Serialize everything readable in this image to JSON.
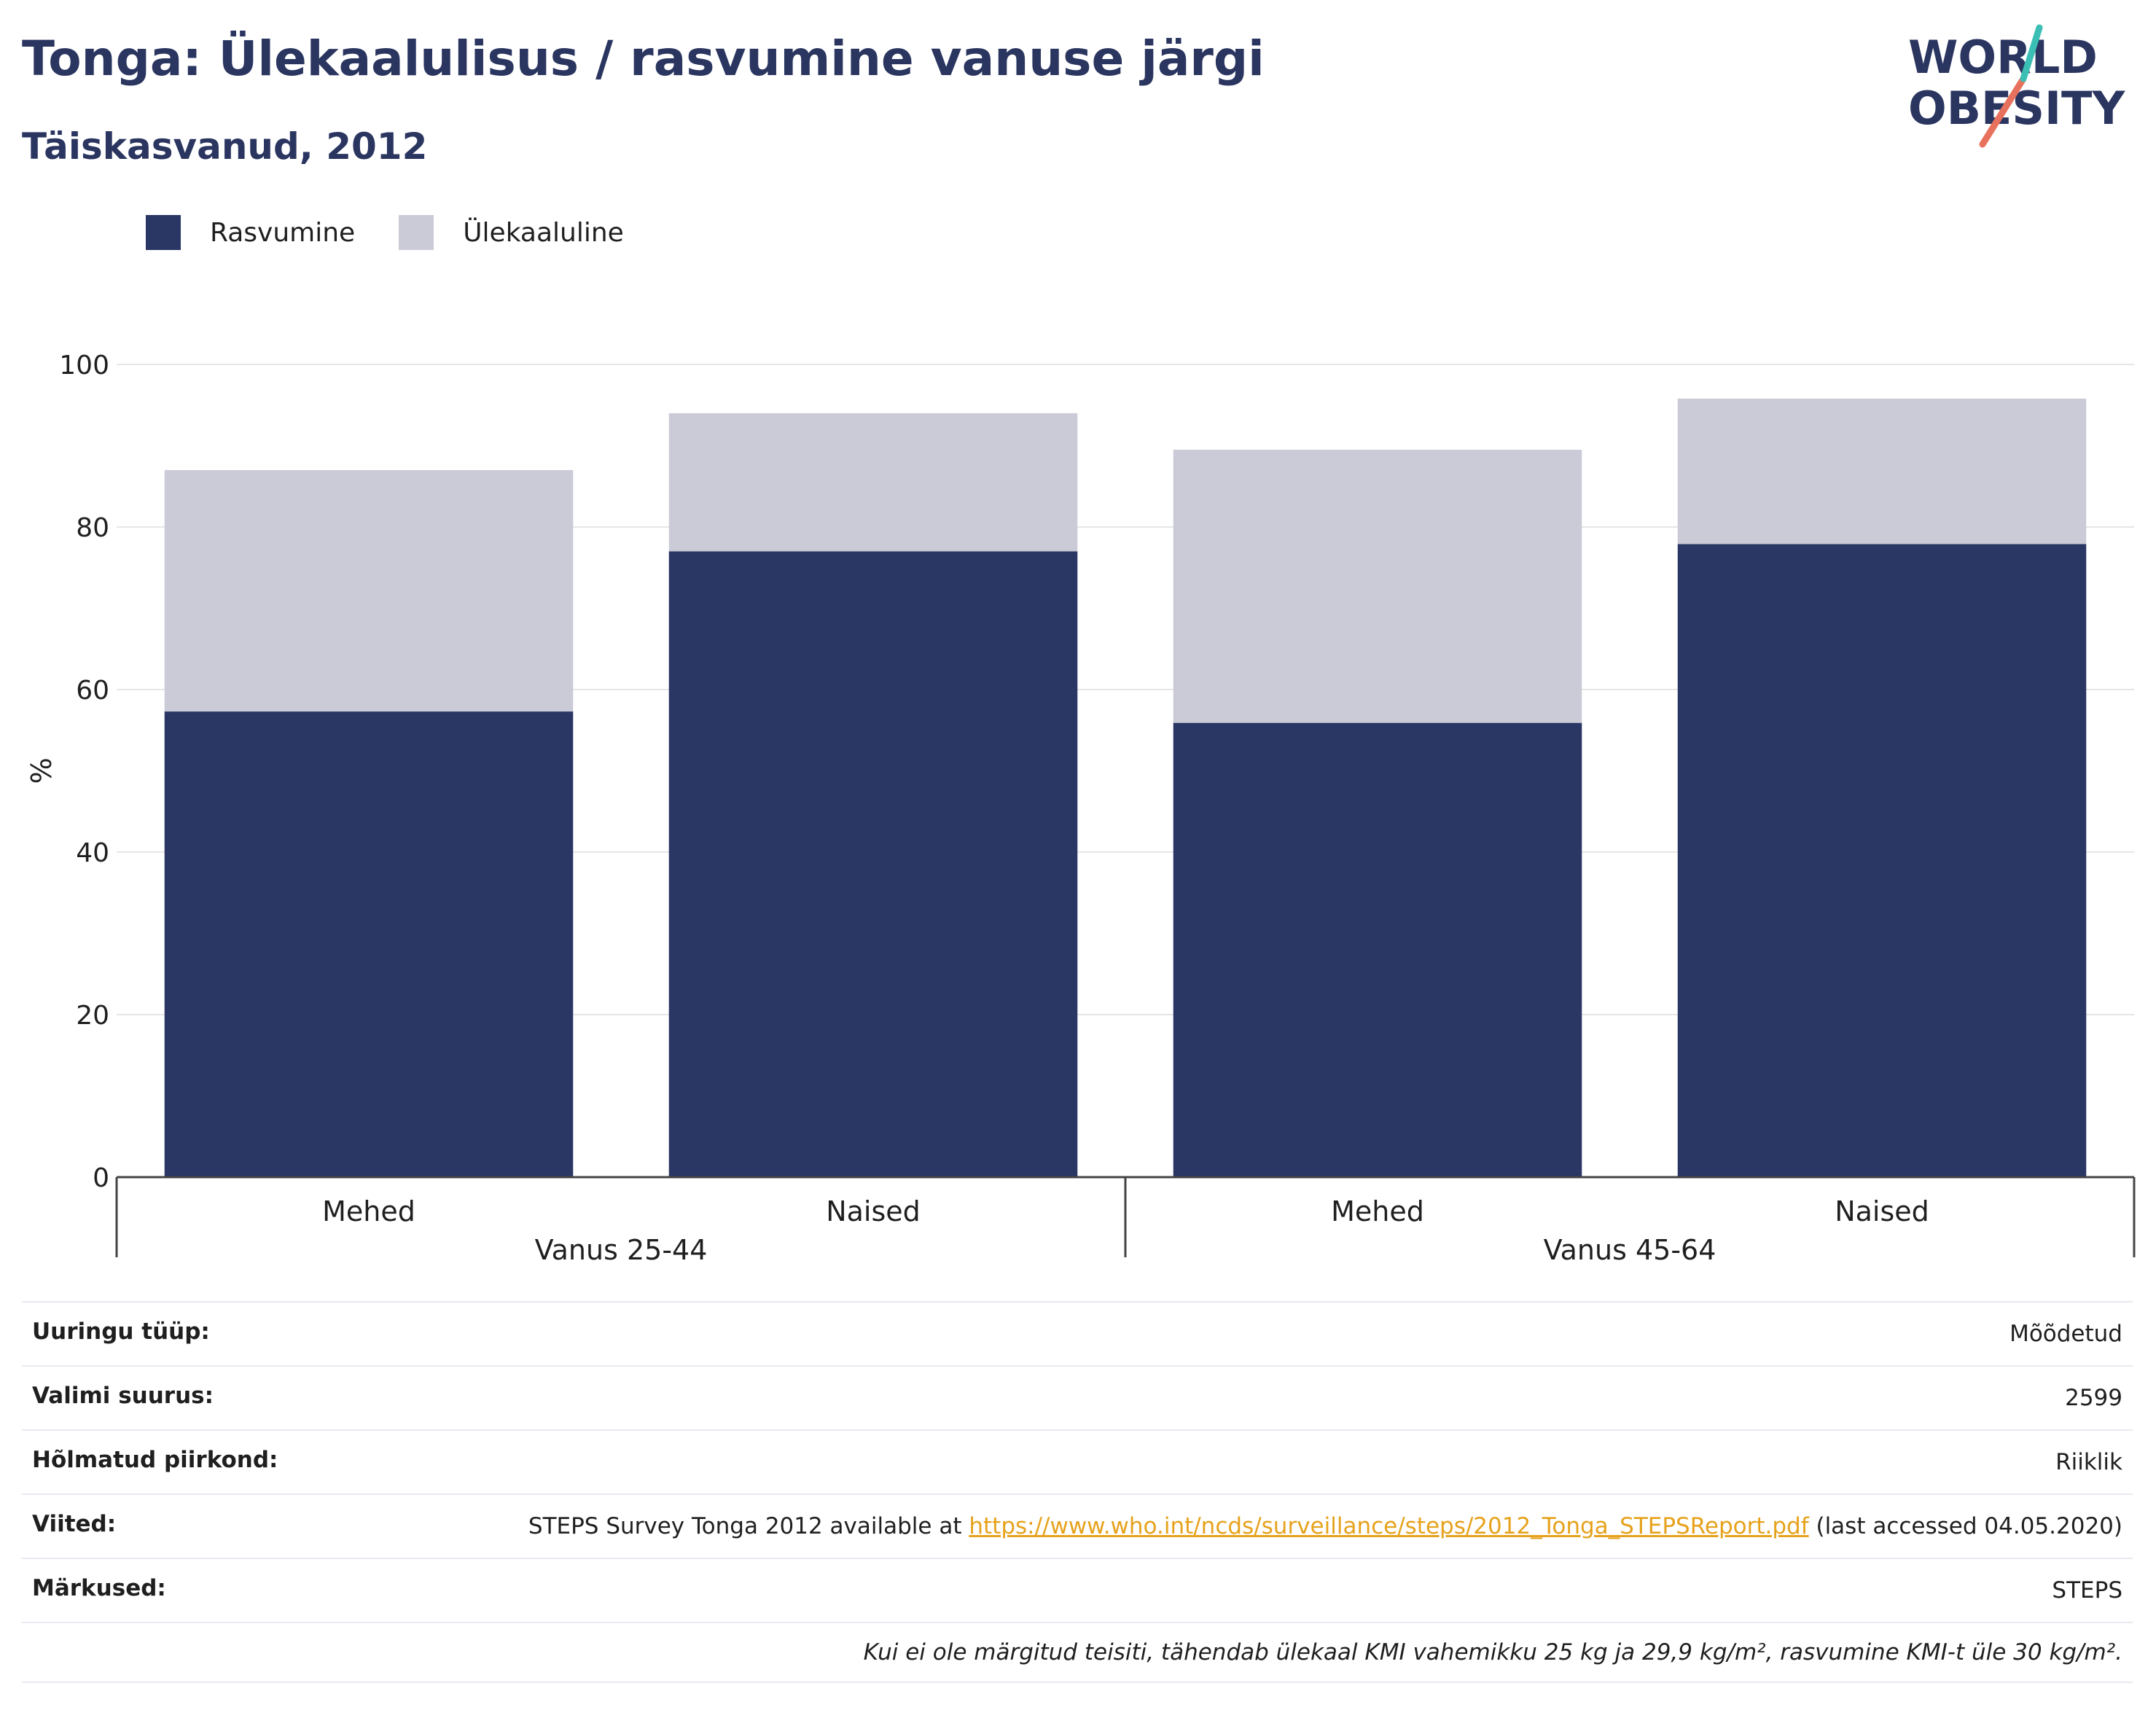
{
  "header": {
    "title": "Tonga: Ülekaalulisus / rasvumine vanuse järgi",
    "subtitle": "Täiskasvanud, 2012"
  },
  "logo": {
    "line1": "WORLD",
    "line2": "OBESITY"
  },
  "colors": {
    "obesity": "#2a3663",
    "overweight": "#cacbd7",
    "title": "#2a3560",
    "link": "#e6a21c"
  },
  "chart_data": {
    "type": "bar",
    "stacked": true,
    "ylabel": "%",
    "ylim": [
      0,
      100
    ],
    "yticks": [
      0,
      20,
      40,
      60,
      80,
      100
    ],
    "grid": true,
    "legend_position": "top-left",
    "categories": [
      "Mehed",
      "Naised",
      "Mehed",
      "Naised"
    ],
    "groups": [
      {
        "label": "Vanus 25-44",
        "categories": [
          0,
          1
        ]
      },
      {
        "label": "Vanus 45-64",
        "categories": [
          2,
          3
        ]
      }
    ],
    "series": [
      {
        "name": "Rasvumine",
        "values": [
          57.3,
          77.0,
          55.9,
          77.9
        ]
      },
      {
        "name": "Ülekaaluline",
        "values": [
          29.7,
          17.0,
          33.6,
          17.9
        ]
      }
    ]
  },
  "meta": {
    "rows": [
      {
        "label": "Uuringu tüüp:",
        "value": "Mõõdetud"
      },
      {
        "label": "Valimi suurus:",
        "value": "2599"
      },
      {
        "label": "Hõlmatud piirkond:",
        "value": "Riiklik"
      }
    ],
    "references_label": "Viited:",
    "references_pre": "STEPS Survey Tonga 2012 available at ",
    "references_link": "https://www.who.int/ncds/surveillance/steps/2012_Tonga_STEPSReport.pdf",
    "references_post": " (last accessed 04.05.2020)",
    "notes_label": "Märkused:",
    "notes_value": "STEPS",
    "footnote": "Kui ei ole märgitud teisiti, tähendab ülekaal KMI vahemikku 25 kg ja 29,9 kg/m², rasvumine KMI-t üle 30 kg/m²."
  }
}
